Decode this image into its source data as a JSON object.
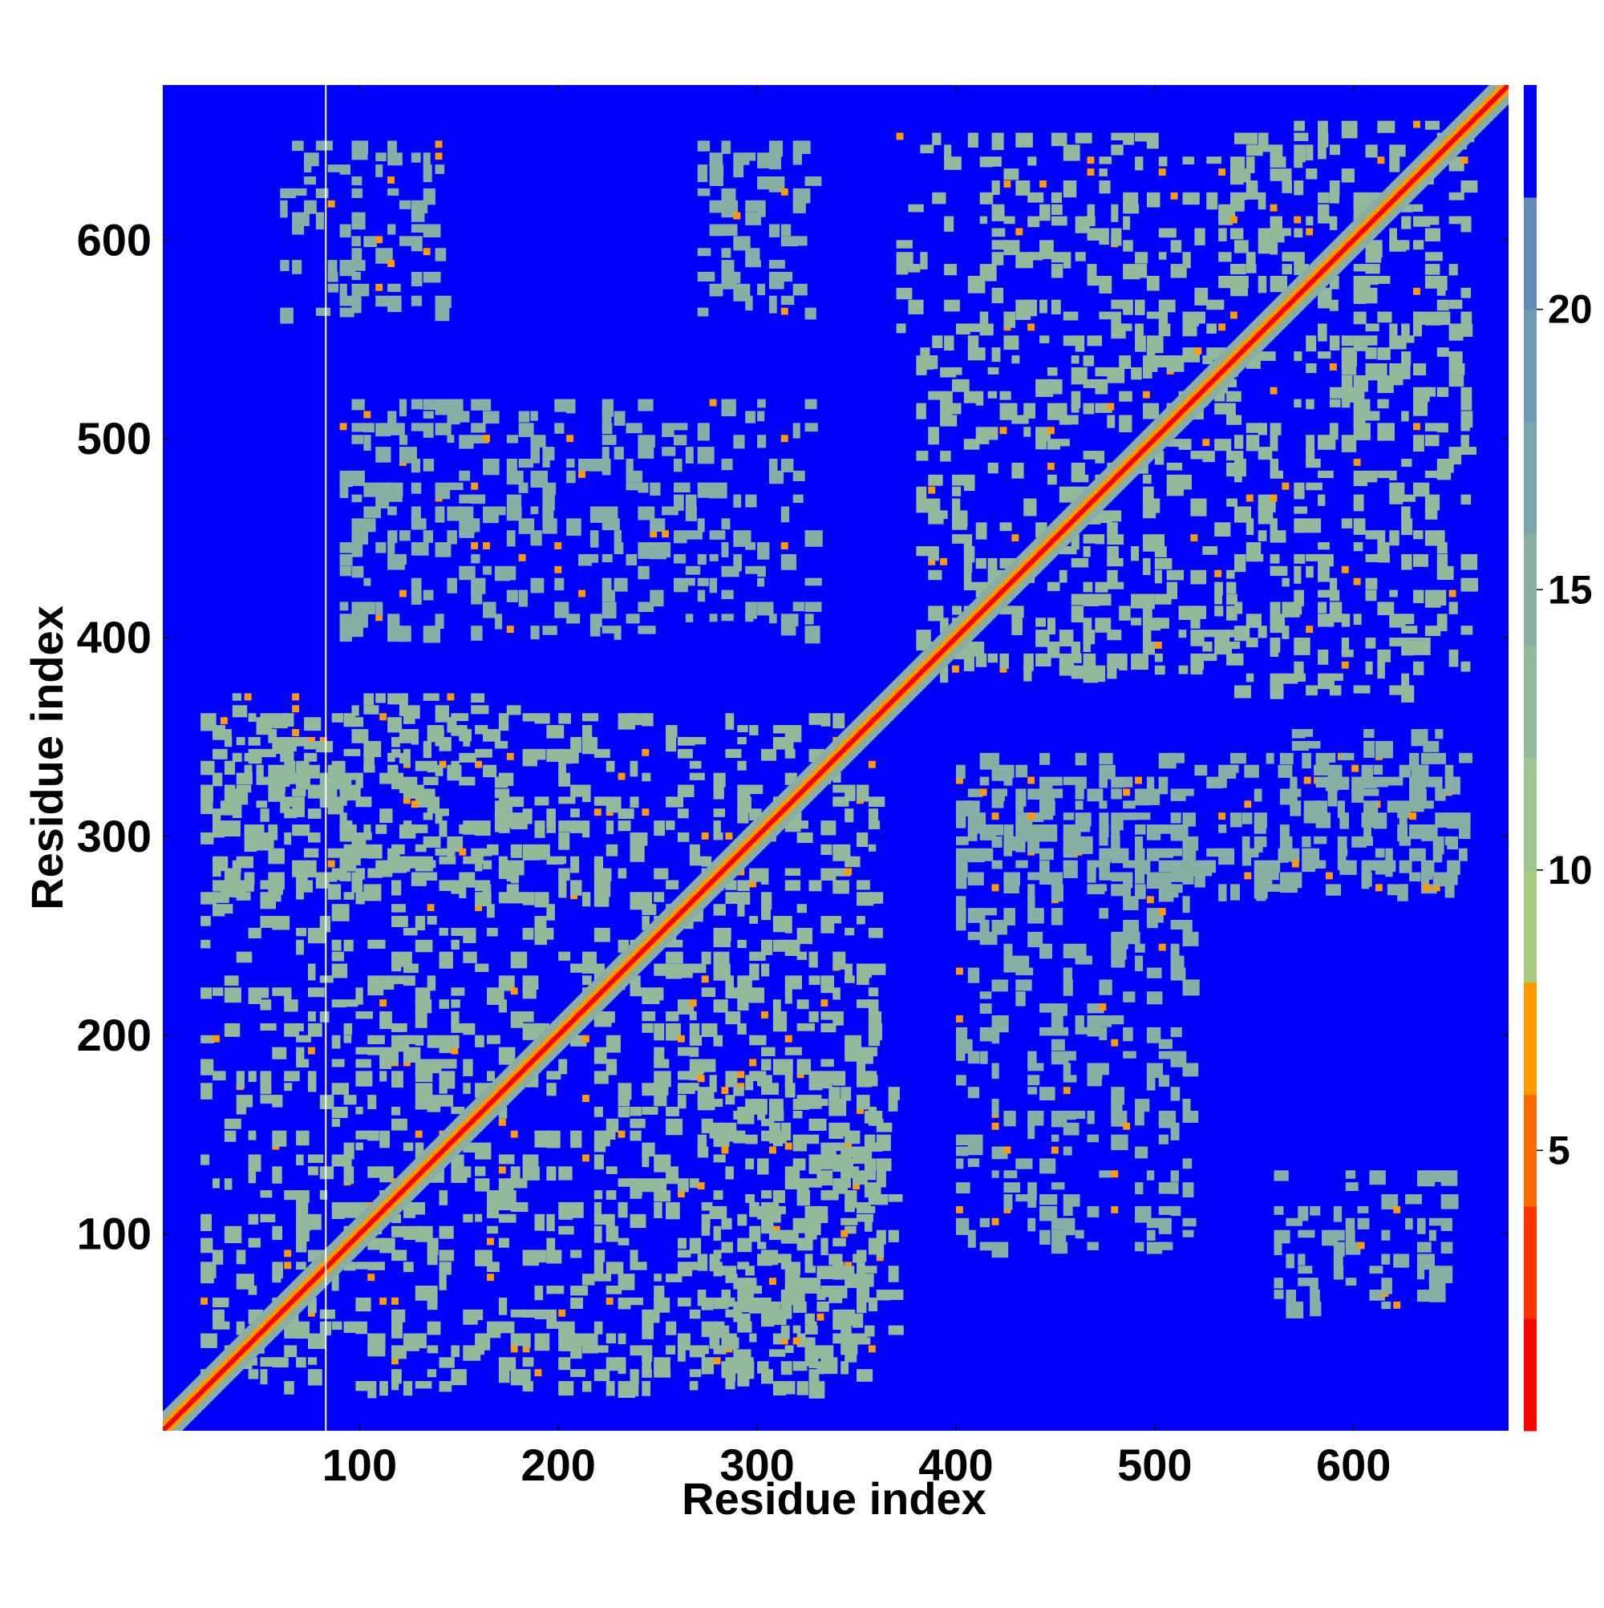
{
  "chart_data": {
    "type": "heatmap",
    "title": "",
    "xlabel": "Residue index",
    "ylabel": "Residue index",
    "xlim": [
      1,
      678
    ],
    "ylim": [
      1,
      678
    ],
    "x_ticks": [
      "100",
      "200",
      "300",
      "400",
      "500",
      "600"
    ],
    "y_ticks": [
      "100",
      "200",
      "300",
      "400",
      "500",
      "600"
    ],
    "x_tick_values": [
      100,
      200,
      300,
      400,
      500,
      600
    ],
    "y_tick_values": [
      100,
      200,
      300,
      400,
      500,
      600
    ],
    "colorbar": {
      "ticks": [
        "5",
        "10",
        "15",
        "20"
      ],
      "tick_values": [
        5,
        10,
        15,
        20
      ],
      "range": [
        0,
        24
      ],
      "levels": [
        {
          "from": 0,
          "to": 2,
          "color": "#ff0000"
        },
        {
          "from": 2,
          "to": 4,
          "color": "#ff3300"
        },
        {
          "from": 4,
          "to": 6,
          "color": "#ff6a00"
        },
        {
          "from": 6,
          "to": 8,
          "color": "#ff9a00"
        },
        {
          "from": 8,
          "to": 10,
          "color": "#a9c97e"
        },
        {
          "from": 10,
          "to": 12,
          "color": "#9fc48f"
        },
        {
          "from": 12,
          "to": 14,
          "color": "#93b99a"
        },
        {
          "from": 14,
          "to": 16,
          "color": "#88afa3"
        },
        {
          "from": 16,
          "to": 18,
          "color": "#7ca5ab"
        },
        {
          "from": 18,
          "to": 20,
          "color": "#6f98b3"
        },
        {
          "from": 20,
          "to": 22,
          "color": "#6389b7"
        },
        {
          "from": 22,
          "to": 24,
          "color": "#0000ff"
        }
      ]
    },
    "background_value": 24,
    "diagonal_value": 1,
    "gap_column": 83,
    "contact_blocks": [
      {
        "x": [
          20,
          360
        ],
        "y": [
          20,
          360
        ],
        "value": 12
      },
      {
        "x": [
          380,
          540
        ],
        "y": [
          380,
          540
        ],
        "value": 12
      },
      {
        "x": [
          540,
          660
        ],
        "y": [
          540,
          660
        ],
        "value": 12
      },
      {
        "x": [
          370,
          540
        ],
        "y": [
          540,
          650
        ],
        "value": 13
      },
      {
        "x": [
          540,
          660
        ],
        "y": [
          370,
          540
        ],
        "value": 13
      },
      {
        "x": [
          30,
          180
        ],
        "y": [
          270,
          370
        ],
        "value": 13
      },
      {
        "x": [
          270,
          370
        ],
        "y": [
          30,
          180
        ],
        "value": 13
      },
      {
        "x": [
          60,
          140
        ],
        "y": [
          560,
          645
        ],
        "value": 15
      },
      {
        "x": [
          270,
          330
        ],
        "y": [
          560,
          645
        ],
        "value": 14
      },
      {
        "x": [
          90,
          330
        ],
        "y": [
          400,
          520
        ],
        "value": 15
      },
      {
        "x": [
          400,
          520
        ],
        "y": [
          90,
          330
        ],
        "value": 15
      },
      {
        "x": [
          560,
          650
        ],
        "y": [
          60,
          130
        ],
        "value": 15
      },
      {
        "x": [
          400,
          650
        ],
        "y": [
          270,
          340
        ],
        "value": 15
      },
      {
        "x": [
          545,
          655
        ],
        "y": [
          270,
          350
        ],
        "value": 14
      }
    ],
    "grid": false,
    "legend": "colorbar-right"
  }
}
